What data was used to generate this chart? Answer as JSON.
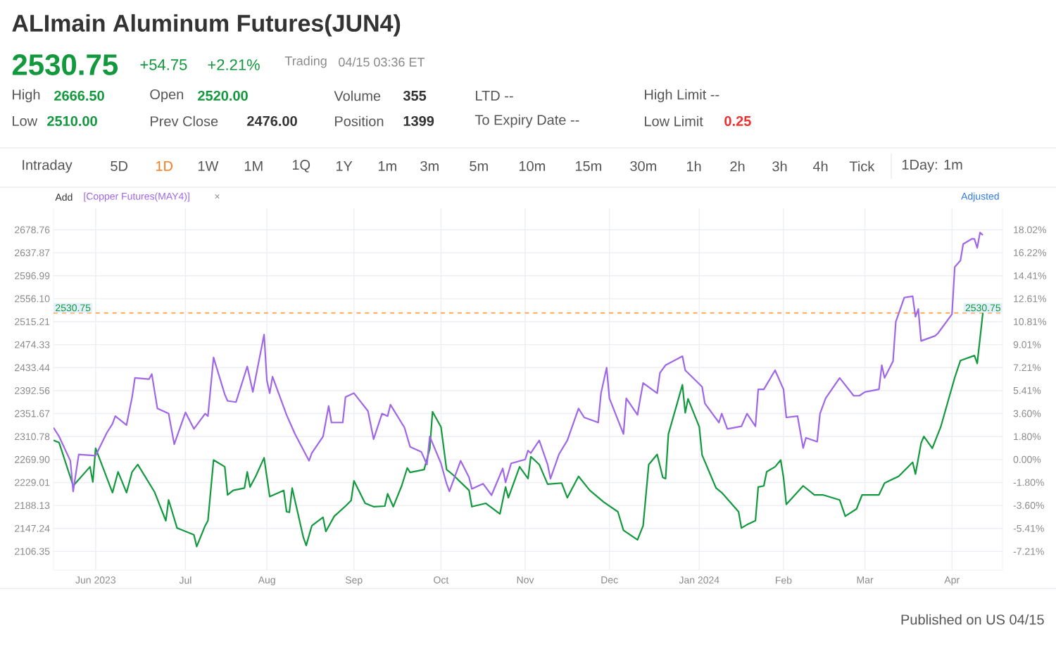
{
  "chart_data": {
    "type": "line",
    "title": "ALImain Aluminum Futures(JUN4)",
    "annotations": [
      "2530.75",
      "+54.75",
      "+2.21%",
      "Trading",
      "04/15 03:36 ET",
      "High",
      "2666.50",
      "Open",
      "2520.00",
      "Volume",
      "355",
      "LTD --",
      "High Limit --",
      "Low",
      "2510.00",
      "Prev Close",
      "2476.00",
      "Position",
      "1399",
      "To Expiry Date --",
      "Low Limit",
      "0.25",
      "Intraday",
      "5D",
      "1D",
      "1W",
      "1M",
      "1Q",
      "1Y",
      "1m",
      "3m",
      "5m",
      "10m",
      "15m",
      "30m",
      "1h",
      "2h",
      "3h",
      "4h",
      "Tick",
      "1Day: 1m",
      "Add",
      "×",
      "Adjusted",
      "Published on US 04/15"
    ],
    "series": [
      {
        "color": "#12993d",
        "x": [
          "2023-05-17",
          "2023-05-19",
          "2023-05-24",
          "2023-05-30",
          "2023-05-31",
          "2023-06-01",
          "2023-06-07",
          "2023-06-09",
          "2023-06-12",
          "2023-06-14",
          "2023-06-16",
          "2023-06-22",
          "2023-06-26",
          "2023-06-27",
          "2023-06-30",
          "2023-07-06",
          "2023-07-07",
          "2023-07-10",
          "2023-07-11",
          "2023-07-13",
          "2023-07-17",
          "2023-07-18",
          "2023-07-20",
          "2023-07-24",
          "2023-07-25",
          "2023-07-26",
          "2023-07-28",
          "2023-07-31",
          "2023-08-02",
          "2023-08-07",
          "2023-08-08",
          "2023-08-09",
          "2023-08-10",
          "2023-08-14",
          "2023-08-15",
          "2023-08-17",
          "2023-08-21",
          "2023-08-22",
          "2023-08-25",
          "2023-08-29",
          "2023-08-31",
          "2023-09-01",
          "2023-09-05",
          "2023-09-08",
          "2023-09-12",
          "2023-09-13",
          "2023-09-15",
          "2023-09-18",
          "2023-09-20",
          "2023-09-21",
          "2023-09-26",
          "2023-09-28",
          "2023-09-29",
          "2023-10-02",
          "2023-10-04",
          "2023-10-06",
          "2023-10-12",
          "2023-10-13",
          "2023-10-18",
          "2023-10-23",
          "2023-10-25",
          "2023-10-26",
          "2023-10-30",
          "2023-11-02",
          "2023-11-03",
          "2023-11-06",
          "2023-11-09",
          "2023-11-14",
          "2023-11-16",
          "2023-11-20",
          "2023-11-24",
          "2023-11-29",
          "2023-12-04",
          "2023-12-06",
          "2023-12-11",
          "2023-12-13",
          "2023-12-15",
          "2023-12-18",
          "2023-12-20",
          "2023-12-21",
          "2023-12-22",
          "2023-12-27",
          "2023-12-28",
          "2023-12-29",
          "2024-01-02",
          "2024-01-03",
          "2024-01-08",
          "2024-01-10",
          "2024-01-16",
          "2024-01-17",
          "2024-01-19",
          "2024-01-22",
          "2024-01-23",
          "2024-01-25",
          "2024-01-26",
          "2024-01-29",
          "2024-01-31",
          "2024-02-01",
          "2024-02-02",
          "2024-02-06",
          "2024-02-08",
          "2024-02-12",
          "2024-02-15",
          "2024-02-21",
          "2024-02-23",
          "2024-02-27",
          "2024-02-29",
          "2024-03-06",
          "2024-03-08",
          "2024-03-13",
          "2024-03-18",
          "2024-03-19",
          "2024-03-21",
          "2024-03-22",
          "2024-03-25",
          "2024-03-28",
          "2024-04-02",
          "2024-04-04",
          "2024-04-09",
          "2024-04-10",
          "2024-04-12"
        ],
        "values": [
          2304,
          2300,
          2223,
          2257,
          2230,
          2290,
          2211,
          2248,
          2211,
          2248,
          2261,
          2212,
          2161,
          2198,
          2148,
          2136,
          2115,
          2152,
          2161,
          2269,
          2257,
          2207,
          2215,
          2219,
          2248,
          2221,
          2240,
          2273,
          2204,
          2215,
          2177,
          2176,
          2219,
          2131,
          2117,
          2152,
          2167,
          2142,
          2169,
          2187,
          2197,
          2232,
          2192,
          2186,
          2187,
          2209,
          2186,
          2223,
          2255,
          2247,
          2252,
          2289,
          2355,
          2328,
          2252,
          2244,
          2215,
          2186,
          2192,
          2173,
          2221,
          2202,
          2257,
          2236,
          2275,
          2261,
          2226,
          2228,
          2202,
          2240,
          2215,
          2194,
          2177,
          2144,
          2127,
          2152,
          2261,
          2279,
          2238,
          2236,
          2315,
          2403,
          2353,
          2378,
          2328,
          2278,
          2219,
          2211,
          2177,
          2148,
          2154,
          2161,
          2221,
          2223,
          2248,
          2257,
          2269,
          2238,
          2190,
          2212,
          2223,
          2207,
          2207,
          2198,
          2169,
          2182,
          2207,
          2207,
          2228,
          2240,
          2265,
          2244,
          2299,
          2311,
          2290,
          2328,
          2416,
          2446,
          2455,
          2441,
          2530.75
        ]
      },
      {
        "name": "[Copper Futures(MAY4)]",
        "color": "#a066e8",
        "axis": "y2",
        "x": [
          "2023-05-17",
          "2023-05-19",
          "2023-05-23",
          "2023-05-24",
          "2023-05-26",
          "2023-06-01",
          "2023-06-05",
          "2023-06-07",
          "2023-06-08",
          "2023-06-12",
          "2023-06-14",
          "2023-06-15",
          "2023-06-20",
          "2023-06-21",
          "2023-06-23",
          "2023-06-27",
          "2023-06-29",
          "2023-07-03",
          "2023-07-06",
          "2023-07-10",
          "2023-07-11",
          "2023-07-13",
          "2023-07-17",
          "2023-07-18",
          "2023-07-21",
          "2023-07-25",
          "2023-07-27",
          "2023-07-31",
          "2023-08-01",
          "2023-08-02",
          "2023-08-03",
          "2023-08-08",
          "2023-08-11",
          "2023-08-16",
          "2023-08-17",
          "2023-08-21",
          "2023-08-23",
          "2023-08-24",
          "2023-08-28",
          "2023-08-29",
          "2023-09-01",
          "2023-09-06",
          "2023-09-08",
          "2023-09-11",
          "2023-09-13",
          "2023-09-14",
          "2023-09-19",
          "2023-09-21",
          "2023-09-25",
          "2023-09-27",
          "2023-09-28",
          "2023-10-02",
          "2023-10-04",
          "2023-10-05",
          "2023-10-09",
          "2023-10-12",
          "2023-10-13",
          "2023-10-17",
          "2023-10-20",
          "2023-10-24",
          "2023-10-25",
          "2023-10-27",
          "2023-11-01",
          "2023-11-02",
          "2023-11-03",
          "2023-11-06",
          "2023-11-09",
          "2023-11-10",
          "2023-11-13",
          "2023-11-16",
          "2023-11-20",
          "2023-11-22",
          "2023-11-27",
          "2023-11-28",
          "2023-11-30",
          "2023-12-01",
          "2023-12-06",
          "2023-12-07",
          "2023-12-11",
          "2023-12-12",
          "2023-12-13",
          "2023-12-18",
          "2023-12-19",
          "2023-12-21",
          "2023-12-27",
          "2023-12-28",
          "2024-01-03",
          "2024-01-04",
          "2024-01-09",
          "2024-01-10",
          "2024-01-12",
          "2024-01-17",
          "2024-01-19",
          "2024-01-22",
          "2024-01-23",
          "2024-01-25",
          "2024-01-29",
          "2024-02-01",
          "2024-02-02",
          "2024-02-06",
          "2024-02-08",
          "2024-02-09",
          "2024-02-13",
          "2024-02-14",
          "2024-02-16",
          "2024-02-21",
          "2024-02-26",
          "2024-02-28",
          "2024-03-01",
          "2024-03-06",
          "2024-03-07",
          "2024-03-08",
          "2024-03-11",
          "2024-03-12",
          "2024-03-15",
          "2024-03-18",
          "2024-03-19",
          "2024-03-20",
          "2024-03-21",
          "2024-03-26",
          "2024-03-27",
          "2024-04-01",
          "2024-04-02",
          "2024-04-04",
          "2024-04-05",
          "2024-04-08",
          "2024-04-09",
          "2024-04-10",
          "2024-04-11",
          "2024-04-12"
        ],
        "values": [
          2.5,
          1.8,
          -0.1,
          -2.5,
          0.4,
          0.3,
          2.1,
          2.8,
          3.4,
          2.7,
          4.9,
          6.4,
          6.3,
          6.7,
          4.0,
          3.6,
          1.2,
          3.7,
          2.4,
          3.6,
          3.4,
          8.0,
          5.1,
          4.6,
          4.5,
          7.3,
          5.3,
          9.8,
          6.2,
          5.2,
          6.5,
          3.5,
          2.0,
          -0.1,
          0.5,
          1.8,
          4.2,
          2.9,
          2.9,
          4.9,
          5.2,
          3.8,
          1.6,
          3.6,
          3.4,
          4.3,
          2.5,
          1.0,
          0.6,
          -0.4,
          1.8,
          -0.3,
          -1.9,
          -2.5,
          -0.1,
          -1.4,
          -2.3,
          -1.9,
          -2.8,
          -0.7,
          -1.8,
          -0.3,
          0.0,
          0.7,
          0.5,
          1.5,
          -0.4,
          -1.5,
          0.4,
          1.5,
          4.0,
          3.3,
          2.9,
          5.2,
          7.2,
          4.8,
          2.0,
          4.8,
          3.5,
          4.8,
          6.0,
          5.2,
          6.8,
          7.4,
          8.1,
          7.0,
          5.7,
          4.4,
          2.9,
          3.6,
          2.4,
          2.6,
          3.6,
          2.6,
          5.5,
          5.5,
          7.0,
          5.5,
          3.3,
          3.4,
          0.9,
          1.7,
          1.4,
          3.6,
          4.8,
          6.4,
          5.0,
          5.0,
          5.3,
          5.5,
          7.4,
          6.4,
          7.7,
          10.8,
          12.7,
          12.8,
          11.2,
          11.8,
          9.3,
          9.7,
          9.9,
          11.4,
          15.1,
          15.6,
          16.9,
          17.3,
          17.3,
          16.6,
          17.8,
          17.6
        ]
      }
    ],
    "xlim": [
      "2023-05-17",
      "2024-04-19"
    ],
    "xticks": [
      {
        "value": "2023-06-01",
        "label": "Jun 2023"
      },
      {
        "value": "2023-07-03",
        "label": "Jul"
      },
      {
        "value": "2023-08-01",
        "label": "Aug"
      },
      {
        "value": "2023-09-01",
        "label": "Sep"
      },
      {
        "value": "2023-10-02",
        "label": "Oct"
      },
      {
        "value": "2023-11-01",
        "label": "Nov"
      },
      {
        "value": "2023-12-01",
        "label": "Dec"
      },
      {
        "value": "2024-01-02",
        "label": "Jan 2024"
      },
      {
        "value": "2024-02-01",
        "label": "Feb"
      },
      {
        "value": "2024-03-01",
        "label": "Mar"
      },
      {
        "value": "2024-04-01",
        "label": "Apr"
      }
    ],
    "ylim": [
      2073,
      2717
    ],
    "yticks": [
      2106.35,
      2147.24,
      2188.13,
      2229.01,
      {
        "value": 2269.9,
        "label": "2269.90"
      },
      2310.78,
      2351.67,
      2392.56,
      2433.44,
      2474.33,
      2515.21,
      {
        "value": 2556.1,
        "label": "2556.10"
      },
      2596.99,
      2637.87,
      2678.76
    ],
    "y2lim": [
      -8.68,
      19.7
    ],
    "y2ticks": [
      {
        "value": -7.21,
        "label": "-7.21%"
      },
      {
        "value": -5.41,
        "label": "-5.41%"
      },
      {
        "value": -3.6,
        "label": "-3.60%"
      },
      {
        "value": -1.8,
        "label": "-1.80%"
      },
      {
        "value": 0,
        "label": "0.00%"
      },
      {
        "value": 1.8,
        "label": "1.80%"
      },
      {
        "value": 3.6,
        "label": "3.60%"
      },
      {
        "value": 5.41,
        "label": "5.41%"
      },
      {
        "value": 7.21,
        "label": "7.21%"
      },
      {
        "value": 9.01,
        "label": "9.01%"
      },
      {
        "value": 10.81,
        "label": "10.81%"
      },
      {
        "value": 12.61,
        "label": "12.61%"
      },
      {
        "value": 14.41,
        "label": "14.41%"
      },
      {
        "value": 16.22,
        "label": "16.22%"
      },
      {
        "value": 18.02,
        "label": "18.02%"
      }
    ],
    "grid": true,
    "ref_lines": [
      {
        "axis": "y",
        "value": 2530.75,
        "label": "2530.75",
        "color": "#ff9f40",
        "line_style": "dashed"
      }
    ]
  }
}
